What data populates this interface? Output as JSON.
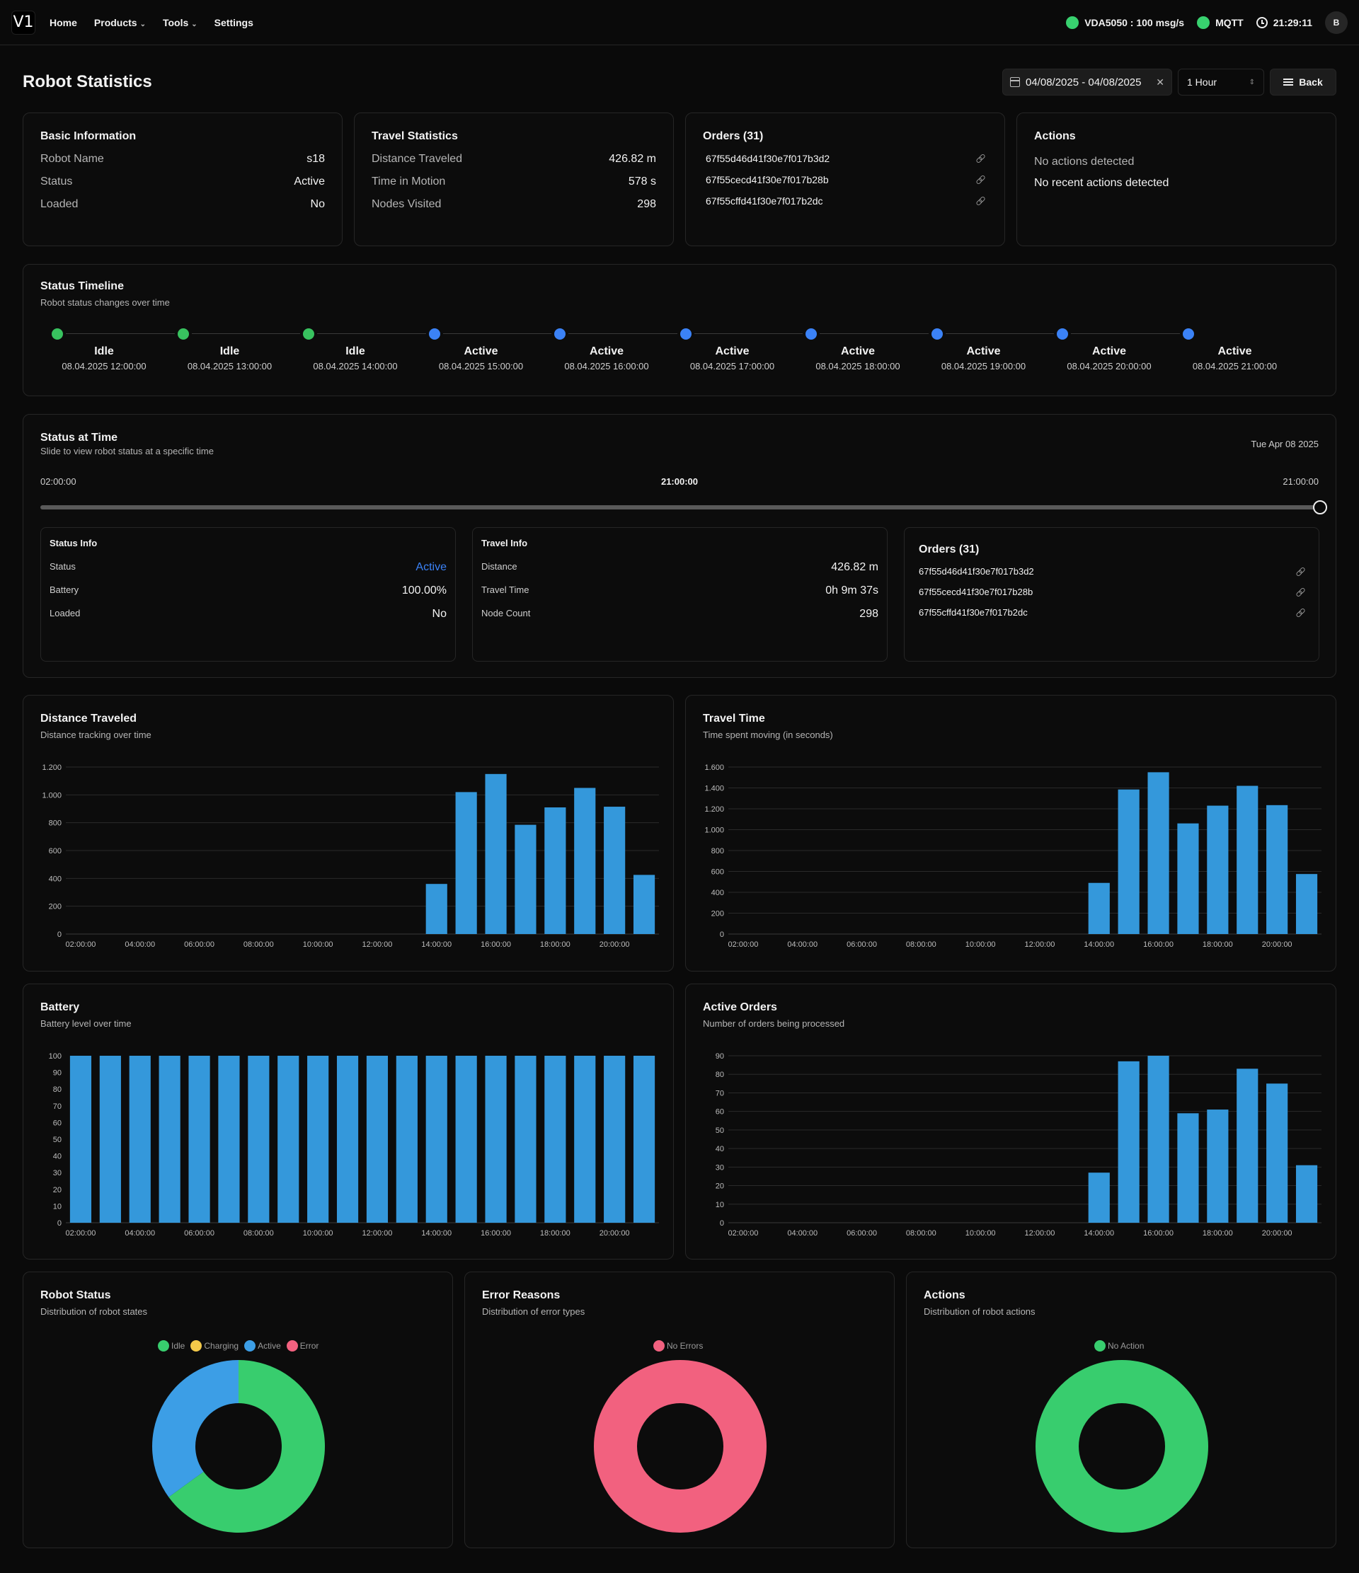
{
  "nav": {
    "logo": "V1",
    "links": [
      {
        "label": "Home",
        "dropdown": false
      },
      {
        "label": "Products",
        "dropdown": true
      },
      {
        "label": "Tools",
        "dropdown": true
      },
      {
        "label": "Settings",
        "dropdown": false
      }
    ],
    "vda_status": "VDA5050 : 100 msg/s",
    "mqtt_status": "MQTT",
    "clock": "21:29:11",
    "avatar": "B",
    "status_color": "#38d16f"
  },
  "page": {
    "title": "Robot Statistics",
    "date_range": "04/08/2025 - 04/08/2025",
    "interval": "1 Hour",
    "back_label": "Back"
  },
  "basic_info": {
    "title": "Basic Information",
    "rows": [
      {
        "label": "Robot Name",
        "value": "s18"
      },
      {
        "label": "Status",
        "value": "Active"
      },
      {
        "label": "Loaded",
        "value": "No"
      }
    ]
  },
  "travel_stats": {
    "title": "Travel Statistics",
    "rows": [
      {
        "label": "Distance Traveled",
        "value": "426.82 m"
      },
      {
        "label": "Time in Motion",
        "value": "578 s"
      },
      {
        "label": "Nodes Visited",
        "value": "298"
      }
    ]
  },
  "orders": {
    "title": "Orders (31)",
    "items": [
      "67f55d46d41f30e7f017b3d2",
      "67f55cecd41f30e7f017b28b",
      "67f55cffd41f30e7f017b2dc"
    ]
  },
  "actions": {
    "title": "Actions",
    "line1": "No actions detected",
    "line2": "No recent actions detected"
  },
  "timeline": {
    "title": "Status Timeline",
    "subtitle": "Robot status changes over time",
    "events": [
      {
        "status": "Idle",
        "time": "08.04.2025 12:00:00",
        "color": "#38c25f"
      },
      {
        "status": "Idle",
        "time": "08.04.2025 13:00:00",
        "color": "#38c25f"
      },
      {
        "status": "Idle",
        "time": "08.04.2025 14:00:00",
        "color": "#38c25f"
      },
      {
        "status": "Active",
        "time": "08.04.2025 15:00:00",
        "color": "#3b82f6"
      },
      {
        "status": "Active",
        "time": "08.04.2025 16:00:00",
        "color": "#3b82f6"
      },
      {
        "status": "Active",
        "time": "08.04.2025 17:00:00",
        "color": "#3b82f6"
      },
      {
        "status": "Active",
        "time": "08.04.2025 18:00:00",
        "color": "#3b82f6"
      },
      {
        "status": "Active",
        "time": "08.04.2025 19:00:00",
        "color": "#3b82f6"
      },
      {
        "status": "Active",
        "time": "08.04.2025 20:00:00",
        "color": "#3b82f6"
      },
      {
        "status": "Active",
        "time": "08.04.2025 21:00:00",
        "color": "#3b82f6"
      }
    ]
  },
  "status_at_time": {
    "title": "Status at Time",
    "subtitle": "Slide to view robot status at a specific time",
    "date": "Tue Apr 08 2025",
    "start": "02:00:00",
    "current": "21:00:00",
    "end": "21:00:00",
    "slider_fraction": 1.0,
    "status_info": {
      "title": "Status Info",
      "rows": [
        {
          "label": "Status",
          "value": "Active"
        },
        {
          "label": "Battery",
          "value": "100.00%"
        },
        {
          "label": "Loaded",
          "value": "No"
        }
      ],
      "active_color": "#3b82f6"
    },
    "travel_info": {
      "title": "Travel Info",
      "rows": [
        {
          "label": "Distance",
          "value": "426.82 m"
        },
        {
          "label": "Travel Time",
          "value": "0h 9m 37s"
        },
        {
          "label": "Node Count",
          "value": "298"
        }
      ]
    },
    "orders": {
      "title": "Orders (31)",
      "items": [
        "67f55d46d41f30e7f017b3d2",
        "67f55cecd41f30e7f017b28b",
        "67f55cffd41f30e7f017b2dc"
      ]
    }
  },
  "chart_data": [
    {
      "type": "bar",
      "title": "Distance Traveled",
      "subtitle": "Distance tracking over time",
      "categories": [
        "02:00:00",
        "03:00:00",
        "04:00:00",
        "05:00:00",
        "06:00:00",
        "07:00:00",
        "08:00:00",
        "09:00:00",
        "10:00:00",
        "11:00:00",
        "12:00:00",
        "13:00:00",
        "14:00:00",
        "15:00:00",
        "16:00:00",
        "17:00:00",
        "18:00:00",
        "19:00:00",
        "20:00:00",
        "21:00:00"
      ],
      "tick_labels": [
        "02:00:00",
        "04:00:00",
        "06:00:00",
        "08:00:00",
        "10:00:00",
        "12:00:00",
        "14:00:00",
        "16:00:00",
        "18:00:00",
        "20:00:00"
      ],
      "values": [
        0,
        0,
        0,
        0,
        0,
        0,
        0,
        0,
        0,
        0,
        0,
        0,
        360,
        1020,
        1150,
        785,
        910,
        1050,
        915,
        425
      ],
      "yticks": [
        0,
        200,
        400,
        600,
        800,
        1000,
        1200
      ],
      "ytick_labels": [
        "0",
        "200",
        "400",
        "600",
        "800",
        "1.000",
        "1.200"
      ],
      "ylim": [
        0,
        1200
      ],
      "color": "#3498db",
      "grid": true
    },
    {
      "type": "bar",
      "title": "Travel Time",
      "subtitle": "Time spent moving (in seconds)",
      "categories": [
        "02:00:00",
        "03:00:00",
        "04:00:00",
        "05:00:00",
        "06:00:00",
        "07:00:00",
        "08:00:00",
        "09:00:00",
        "10:00:00",
        "11:00:00",
        "12:00:00",
        "13:00:00",
        "14:00:00",
        "15:00:00",
        "16:00:00",
        "17:00:00",
        "18:00:00",
        "19:00:00",
        "20:00:00",
        "21:00:00"
      ],
      "tick_labels": [
        "02:00:00",
        "04:00:00",
        "06:00:00",
        "08:00:00",
        "10:00:00",
        "12:00:00",
        "14:00:00",
        "16:00:00",
        "18:00:00",
        "20:00:00"
      ],
      "values": [
        0,
        0,
        0,
        0,
        0,
        0,
        0,
        0,
        0,
        0,
        0,
        0,
        490,
        1385,
        1550,
        1060,
        1230,
        1420,
        1235,
        575
      ],
      "yticks": [
        0,
        200,
        400,
        600,
        800,
        1000,
        1200,
        1400,
        1600
      ],
      "ytick_labels": [
        "0",
        "200",
        "400",
        "600",
        "800",
        "1.000",
        "1.200",
        "1.400",
        "1.600"
      ],
      "ylim": [
        0,
        1600
      ],
      "color": "#3498db",
      "grid": true
    },
    {
      "type": "bar",
      "title": "Battery",
      "subtitle": "Battery level over time",
      "categories": [
        "02:00:00",
        "03:00:00",
        "04:00:00",
        "05:00:00",
        "06:00:00",
        "07:00:00",
        "08:00:00",
        "09:00:00",
        "10:00:00",
        "11:00:00",
        "12:00:00",
        "13:00:00",
        "14:00:00",
        "15:00:00",
        "16:00:00",
        "17:00:00",
        "18:00:00",
        "19:00:00",
        "20:00:00",
        "21:00:00"
      ],
      "tick_labels": [
        "02:00:00",
        "04:00:00",
        "06:00:00",
        "08:00:00",
        "10:00:00",
        "12:00:00",
        "14:00:00",
        "16:00:00",
        "18:00:00",
        "20:00:00"
      ],
      "values": [
        100,
        100,
        100,
        100,
        100,
        100,
        100,
        100,
        100,
        100,
        100,
        100,
        100,
        100,
        100,
        100,
        100,
        100,
        100,
        100
      ],
      "yticks": [
        0,
        10,
        20,
        30,
        40,
        50,
        60,
        70,
        80,
        90,
        100
      ],
      "ytick_labels": [
        "0",
        "10",
        "20",
        "30",
        "40",
        "50",
        "60",
        "70",
        "80",
        "90",
        "100"
      ],
      "ylim": [
        0,
        100
      ],
      "color": "#3498db",
      "grid": false
    },
    {
      "type": "bar",
      "title": "Active Orders",
      "subtitle": "Number of orders being processed",
      "categories": [
        "02:00:00",
        "03:00:00",
        "04:00:00",
        "05:00:00",
        "06:00:00",
        "07:00:00",
        "08:00:00",
        "09:00:00",
        "10:00:00",
        "11:00:00",
        "12:00:00",
        "13:00:00",
        "14:00:00",
        "15:00:00",
        "16:00:00",
        "17:00:00",
        "18:00:00",
        "19:00:00",
        "20:00:00",
        "21:00:00"
      ],
      "tick_labels": [
        "02:00:00",
        "04:00:00",
        "06:00:00",
        "08:00:00",
        "10:00:00",
        "12:00:00",
        "14:00:00",
        "16:00:00",
        "18:00:00",
        "20:00:00"
      ],
      "values": [
        0,
        0,
        0,
        0,
        0,
        0,
        0,
        0,
        0,
        0,
        0,
        0,
        27,
        87,
        90,
        59,
        61,
        83,
        75,
        31
      ],
      "yticks": [
        0,
        10,
        20,
        30,
        40,
        50,
        60,
        70,
        80,
        90
      ],
      "ytick_labels": [
        "0",
        "10",
        "20",
        "30",
        "40",
        "50",
        "60",
        "70",
        "80",
        "90"
      ],
      "ylim": [
        0,
        90
      ],
      "color": "#3498db",
      "grid": true
    },
    {
      "type": "pie",
      "title": "Robot Status",
      "subtitle": "Distribution of robot states",
      "legend": [
        {
          "label": "Idle",
          "color": "#38cd6e"
        },
        {
          "label": "Charging",
          "color": "#f3c94a"
        },
        {
          "label": "Active",
          "color": "#3c9ee6"
        },
        {
          "label": "Error",
          "color": "#f2617f"
        }
      ],
      "slices": [
        {
          "label": "Idle",
          "value": 65,
          "color": "#38cd6e"
        },
        {
          "label": "Active",
          "value": 35,
          "color": "#3c9ee6"
        }
      ]
    },
    {
      "type": "pie",
      "title": "Error Reasons",
      "subtitle": "Distribution of error types",
      "legend": [
        {
          "label": "No Errors",
          "color": "#f2617f"
        }
      ],
      "slices": [
        {
          "label": "No Errors",
          "value": 100,
          "color": "#f2617f"
        }
      ]
    },
    {
      "type": "pie",
      "title": "Actions",
      "subtitle": "Distribution of robot actions",
      "legend": [
        {
          "label": "No Action",
          "color": "#38cd6e"
        }
      ],
      "slices": [
        {
          "label": "No Action",
          "value": 100,
          "color": "#38cd6e"
        }
      ]
    }
  ]
}
